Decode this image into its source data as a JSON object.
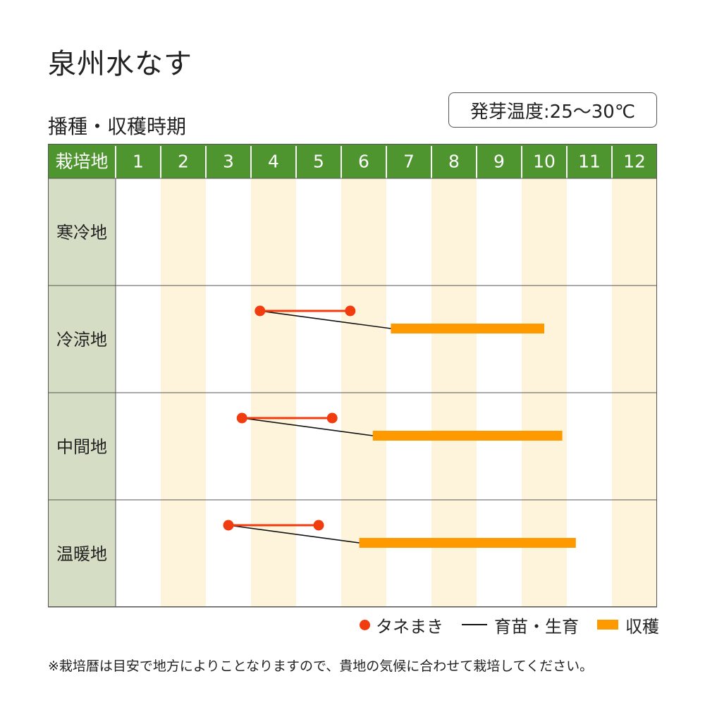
{
  "title": "泉州水なす",
  "subtitle": "播種・収穫時期",
  "germination": "発芽温度:25〜30℃",
  "colors": {
    "header_green": "#4e942f",
    "region_cell": "#d5dec4",
    "stripe": "#fdf4db",
    "sowing": "#f03c0f",
    "growing": "#111111",
    "harvest": "#ff9900"
  },
  "chart_data": {
    "type": "gantt",
    "header_label": "栽培地",
    "months": [
      "1",
      "2",
      "3",
      "4",
      "5",
      "6",
      "7",
      "8",
      "9",
      "10",
      "11",
      "12"
    ],
    "regions": [
      {
        "name": "寒冷地",
        "sowing": null,
        "growing": null,
        "harvest": null
      },
      {
        "name": "冷涼地",
        "sowing": [
          4.2,
          6.2
        ],
        "growing": [
          4.2,
          7.1
        ],
        "harvest": [
          7.1,
          10.5
        ]
      },
      {
        "name": "中間地",
        "sowing": [
          3.8,
          5.8
        ],
        "growing": [
          3.8,
          6.7
        ],
        "harvest": [
          6.7,
          10.9
        ]
      },
      {
        "name": "温暖地",
        "sowing": [
          3.5,
          5.5
        ],
        "growing": [
          3.5,
          6.4
        ],
        "harvest": [
          6.4,
          11.2
        ]
      }
    ]
  },
  "legend": {
    "sowing": "タネまき",
    "growing": "育苗・生育",
    "harvest": "収穫"
  },
  "note": "※栽培暦は目安で地方によりことなりますので、貴地の気候に合わせて栽培してください。"
}
